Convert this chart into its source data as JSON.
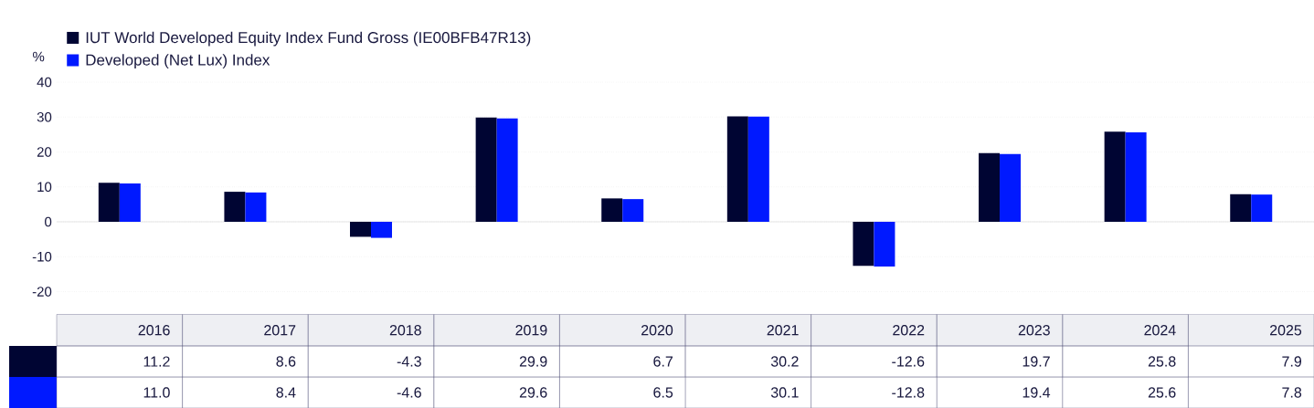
{
  "chart_data": {
    "type": "bar",
    "ylabel": "%",
    "categories": [
      "2016",
      "2017",
      "2018",
      "2019",
      "2020",
      "2021",
      "2022",
      "2023",
      "2024",
      "2025"
    ],
    "series": [
      {
        "name": "IUT World Developed Equity Index Fund Gross (IE00BFB47R13)",
        "color": "#000533",
        "values": [
          11.2,
          8.6,
          -4.3,
          29.9,
          6.7,
          30.2,
          -12.6,
          19.7,
          25.8,
          7.9
        ],
        "value_labels": [
          "11.2",
          "8.6",
          "-4.3",
          "29.9",
          "6.7",
          "30.2",
          "-12.6",
          "19.7",
          "25.8",
          "7.9"
        ]
      },
      {
        "name": "Developed (Net Lux) Index",
        "color": "#0019ff",
        "values": [
          11.0,
          8.4,
          -4.6,
          29.6,
          6.5,
          30.1,
          -12.8,
          19.4,
          25.6,
          7.8
        ],
        "value_labels": [
          "11.0",
          "8.4",
          "-4.6",
          "29.6",
          "6.5",
          "30.1",
          "-12.8",
          "19.4",
          "25.6",
          "7.8"
        ]
      }
    ],
    "ylim": [
      -20,
      40
    ],
    "yticks": [
      -20,
      -10,
      0,
      10,
      20,
      30,
      40
    ],
    "grid": "y",
    "legend": "top left"
  }
}
